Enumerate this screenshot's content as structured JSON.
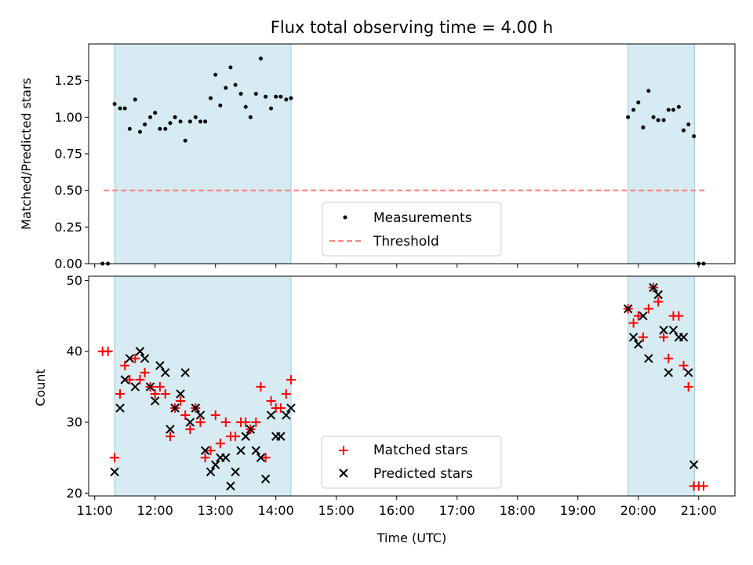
{
  "chart_data": [
    {
      "panel": "top",
      "type": "scatter",
      "title": "Flux total observing time = 4.00 h",
      "ylabel": "Matched/Predicted stars",
      "xlabel": "",
      "xlim": [
        10.9,
        21.6
      ],
      "ylim": [
        0,
        1.5
      ],
      "yticks": [
        0,
        0.25,
        0.5,
        0.75,
        1.0,
        1.25
      ],
      "ytick_labels": [
        "0.00",
        "0.25",
        "0.50",
        "0.75",
        "1.00",
        "1.25"
      ],
      "legend": {
        "placement": "lower-center",
        "entries": [
          "Measurements",
          "Threshold"
        ]
      },
      "threshold": {
        "name": "Threshold",
        "value": 0.5,
        "x_range": [
          11.15,
          21.1
        ],
        "color": "#ff7f7f"
      },
      "observing_windows": [
        [
          11.33,
          14.25
        ],
        [
          19.83,
          20.93
        ]
      ],
      "series": [
        {
          "name": "Measurements",
          "color": "#000000",
          "x": [
            11.13,
            11.22,
            11.33,
            11.42,
            11.5,
            11.58,
            11.67,
            11.75,
            11.83,
            11.92,
            12.0,
            12.08,
            12.17,
            12.25,
            12.33,
            12.42,
            12.5,
            12.58,
            12.67,
            12.75,
            12.83,
            12.92,
            13.0,
            13.08,
            13.17,
            13.25,
            13.33,
            13.42,
            13.5,
            13.58,
            13.67,
            13.75,
            13.83,
            13.92,
            14.0,
            14.08,
            14.17,
            14.25,
            19.83,
            19.92,
            20.0,
            20.08,
            20.17,
            20.25,
            20.33,
            20.42,
            20.5,
            20.58,
            20.67,
            20.75,
            20.83,
            20.92,
            21.0,
            21.08
          ],
          "y": [
            0.0,
            0.0,
            1.09,
            1.06,
            1.06,
            0.92,
            1.12,
            0.9,
            0.95,
            1.0,
            1.03,
            0.92,
            0.92,
            0.96,
            1.0,
            0.97,
            0.84,
            0.97,
            1.0,
            0.97,
            0.97,
            1.13,
            1.29,
            1.08,
            1.2,
            1.34,
            1.22,
            1.16,
            1.07,
            1.0,
            1.16,
            1.4,
            1.14,
            1.06,
            1.14,
            1.14,
            1.12,
            1.13,
            1.0,
            1.05,
            1.1,
            0.93,
            1.18,
            1.0,
            0.98,
            0.98,
            1.05,
            1.05,
            1.07,
            0.91,
            0.95,
            0.87,
            0.0,
            0.0
          ]
        }
      ]
    },
    {
      "panel": "bottom",
      "type": "scatter",
      "title": "",
      "ylabel": "Count",
      "xlabel": "Time (UTC)",
      "xlim": [
        10.9,
        21.6
      ],
      "ylim": [
        19.6,
        50.6
      ],
      "yticks": [
        20,
        30,
        40,
        50
      ],
      "ytick_labels": [
        "20",
        "30",
        "40",
        "50"
      ],
      "xticks": [
        11,
        12,
        13,
        14,
        15,
        16,
        17,
        18,
        19,
        20,
        21
      ],
      "xtick_labels": [
        "11:00",
        "12:00",
        "13:00",
        "14:00",
        "15:00",
        "16:00",
        "17:00",
        "18:00",
        "19:00",
        "20:00",
        "21:00"
      ],
      "legend": {
        "placement": "lower-center",
        "entries": [
          "Matched stars",
          "Predicted stars"
        ]
      },
      "observing_windows": [
        [
          11.33,
          14.25
        ],
        [
          19.83,
          20.93
        ]
      ],
      "series": [
        {
          "name": "Matched stars",
          "marker": "+",
          "color": "#ff0000",
          "x": [
            11.13,
            11.22,
            11.33,
            11.42,
            11.5,
            11.58,
            11.67,
            11.75,
            11.83,
            11.92,
            12.0,
            12.08,
            12.17,
            12.25,
            12.33,
            12.42,
            12.5,
            12.58,
            12.67,
            12.75,
            12.83,
            12.92,
            13.0,
            13.08,
            13.17,
            13.25,
            13.33,
            13.42,
            13.5,
            13.58,
            13.67,
            13.75,
            13.83,
            13.92,
            14.0,
            14.08,
            14.17,
            14.25,
            19.83,
            19.92,
            20.0,
            20.08,
            20.17,
            20.25,
            20.33,
            20.42,
            20.5,
            20.58,
            20.67,
            20.75,
            20.83,
            20.92,
            21.0,
            21.08
          ],
          "y": [
            40,
            40,
            25,
            34,
            38,
            36,
            39,
            36,
            37,
            35,
            34,
            35,
            34,
            28,
            32,
            33,
            31,
            29,
            32,
            30,
            25,
            26,
            31,
            27,
            30,
            28,
            28,
            30,
            30,
            29,
            30,
            35,
            25,
            33,
            32,
            32,
            34,
            36,
            46,
            44,
            45,
            42,
            46,
            49,
            47,
            42,
            39,
            45,
            45,
            38,
            35,
            21,
            21,
            21
          ]
        },
        {
          "name": "Predicted stars",
          "marker": "x",
          "color": "#000000",
          "x": [
            11.33,
            11.42,
            11.5,
            11.58,
            11.67,
            11.75,
            11.83,
            11.92,
            12.0,
            12.08,
            12.17,
            12.25,
            12.33,
            12.42,
            12.5,
            12.58,
            12.67,
            12.75,
            12.83,
            12.92,
            13.0,
            13.08,
            13.17,
            13.25,
            13.33,
            13.42,
            13.5,
            13.58,
            13.67,
            13.75,
            13.83,
            13.92,
            14.0,
            14.08,
            14.17,
            14.25,
            19.83,
            19.92,
            20.0,
            20.08,
            20.17,
            20.25,
            20.33,
            20.42,
            20.5,
            20.58,
            20.67,
            20.75,
            20.83,
            20.92
          ],
          "y": [
            23,
            32,
            36,
            39,
            35,
            40,
            39,
            35,
            33,
            38,
            37,
            29,
            32,
            34,
            37,
            30,
            32,
            31,
            26,
            23,
            24,
            25,
            25,
            21,
            23,
            26,
            28,
            29,
            26,
            25,
            22,
            31,
            28,
            28,
            31,
            32,
            46,
            42,
            41,
            45,
            39,
            49,
            48,
            43,
            37,
            43,
            42,
            42,
            37,
            24
          ]
        }
      ]
    }
  ]
}
